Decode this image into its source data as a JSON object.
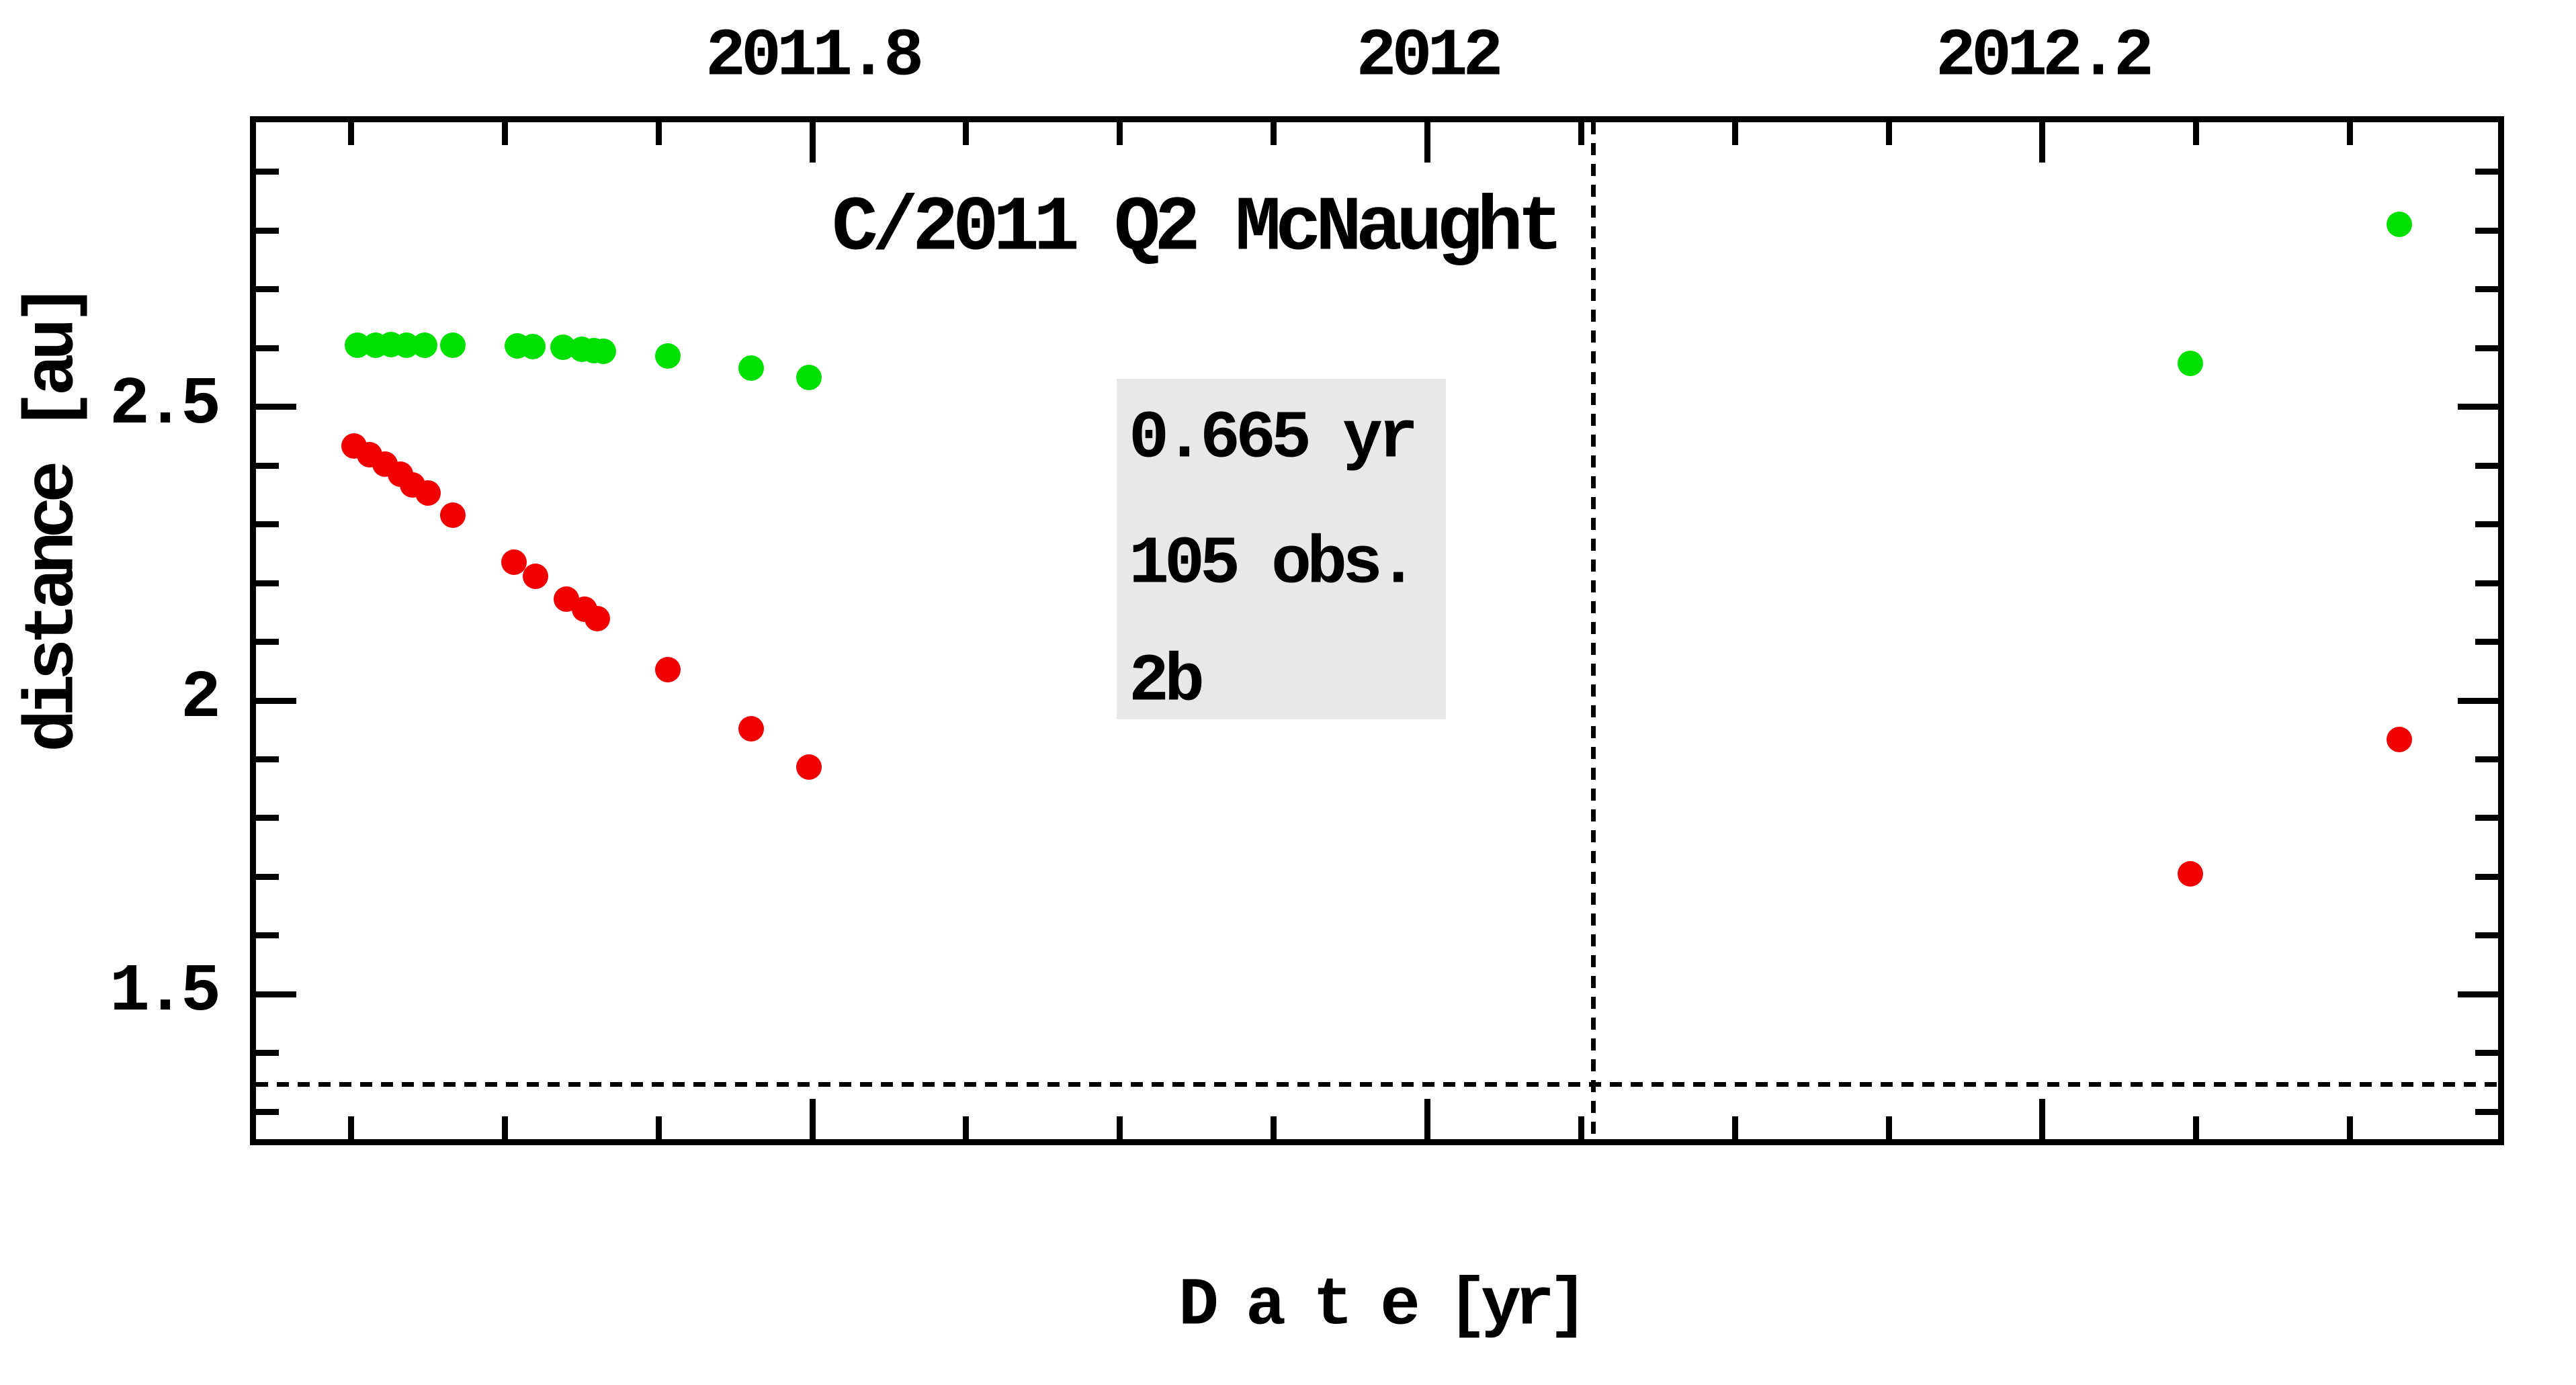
{
  "title": "C/2011 Q2 McNaught",
  "info_box": {
    "arc_length": "0.665 yr",
    "observations": "105 obs.",
    "quality": "2b",
    "background": "#e8e8e8"
  },
  "x_axis": {
    "label": "D a t e [yr]",
    "major_ticks": [
      {
        "value": 2011.8,
        "label": "2011.8"
      },
      {
        "value": 2012.0,
        "label": "2012"
      },
      {
        "value": 2012.2,
        "label": "2012.2"
      }
    ],
    "minor_tick_step": 0.05,
    "minor_tick_start": 2011.65,
    "minor_tick_end": 2012.3
  },
  "y_axis": {
    "label": "distance [au]",
    "major_ticks": [
      {
        "value": 2.5,
        "label": "2.5"
      },
      {
        "value": 2.0,
        "label": "2"
      },
      {
        "value": 1.5,
        "label": "1.5"
      }
    ],
    "minor_tick_step": 0.1,
    "minor_tick_start": 1.3,
    "minor_tick_end": 2.9
  },
  "reference_lines": {
    "perihelion_date_x": 2012.054,
    "perihelion_distance_y": 1.347,
    "style": "dotted"
  },
  "colors": {
    "background": "#ffffff",
    "frame": "#000000",
    "text": "#000000",
    "green_series": "#00e000",
    "red_series": "#f00000",
    "info_box_bg": "#e8e8e8"
  },
  "chart_data": {
    "type": "scatter",
    "title": "C/2011 Q2 McNaught",
    "xlabel": "D a t e [yr]",
    "ylabel": "distance [au]",
    "xlim": [
      2011.618,
      2012.349
    ],
    "ylim": [
      1.249,
      2.99
    ],
    "x_major_ticks": [
      2011.8,
      2012.0,
      2012.2
    ],
    "y_major_ticks": [
      1.5,
      2.0,
      2.5
    ],
    "grid": false,
    "legend": false,
    "series": [
      {
        "name": "green-series",
        "color": "#00e000",
        "marker": "circle",
        "points": [
          [
            2011.652,
            2.605
          ],
          [
            2011.658,
            2.605
          ],
          [
            2011.663,
            2.606
          ],
          [
            2011.668,
            2.605
          ],
          [
            2011.674,
            2.605
          ],
          [
            2011.683,
            2.605
          ],
          [
            2011.704,
            2.604
          ],
          [
            2011.709,
            2.602
          ],
          [
            2011.719,
            2.601
          ],
          [
            2011.725,
            2.598
          ],
          [
            2011.729,
            2.596
          ],
          [
            2011.732,
            2.595
          ],
          [
            2011.753,
            2.586
          ],
          [
            2011.78,
            2.566
          ],
          [
            2011.799,
            2.55
          ],
          [
            2012.248,
            2.574
          ],
          [
            2012.316,
            2.81
          ]
        ]
      },
      {
        "name": "red-series",
        "color": "#f00000",
        "marker": "circle",
        "points": [
          [
            2011.651,
            2.433
          ],
          [
            2011.656,
            2.418
          ],
          [
            2011.661,
            2.402
          ],
          [
            2011.666,
            2.385
          ],
          [
            2011.67,
            2.367
          ],
          [
            2011.675,
            2.353
          ],
          [
            2011.683,
            2.315
          ],
          [
            2011.703,
            2.235
          ],
          [
            2011.71,
            2.212
          ],
          [
            2011.72,
            2.173
          ],
          [
            2011.726,
            2.155
          ],
          [
            2011.73,
            2.139
          ],
          [
            2011.753,
            2.053
          ],
          [
            2011.78,
            1.952
          ],
          [
            2011.799,
            1.887
          ],
          [
            2012.248,
            1.705
          ],
          [
            2012.316,
            1.934
          ]
        ]
      }
    ]
  }
}
